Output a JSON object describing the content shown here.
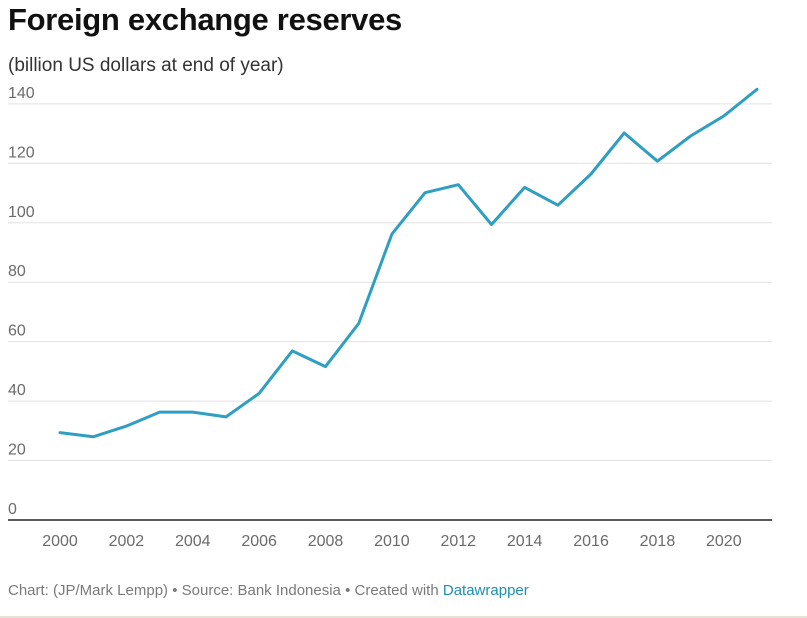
{
  "title": "Foreign exchange reserves",
  "subtitle": "(billion US dollars at end of year)",
  "footer": {
    "prefix": "Chart: (JP/Mark Lempp) • Source: Bank Indonesia • Created with ",
    "link_text": "Datawrapper"
  },
  "colors": {
    "line": "#2e9fc2",
    "grid": "#e2e2e2",
    "axis": "#222222",
    "tick": "#6b6b6b",
    "link": "#1d8fb1"
  },
  "chart_data": {
    "type": "line",
    "title": "Foreign exchange reserves",
    "subtitle": "(billion US dollars at end of year)",
    "xlabel": "",
    "ylabel": "",
    "xlim": [
      2000,
      2021
    ],
    "ylim": [
      0,
      145
    ],
    "x_ticks": [
      2000,
      2002,
      2004,
      2006,
      2008,
      2010,
      2012,
      2014,
      2016,
      2018,
      2020
    ],
    "y_ticks": [
      0,
      20,
      40,
      60,
      80,
      100,
      120,
      140
    ],
    "grid": "horizontal",
    "series": [
      {
        "x": [
          2000,
          2001,
          2002,
          2003,
          2004,
          2005,
          2006,
          2007,
          2008,
          2009,
          2010,
          2011,
          2012,
          2013,
          2014,
          2015,
          2016,
          2017,
          2018,
          2019,
          2020,
          2021
        ],
        "values": [
          29.4,
          28.0,
          31.6,
          36.3,
          36.3,
          34.7,
          42.6,
          56.9,
          51.6,
          66.1,
          96.2,
          110.1,
          112.8,
          99.4,
          111.9,
          105.9,
          116.4,
          130.2,
          120.7,
          129.2,
          135.9,
          144.9
        ]
      }
    ]
  }
}
